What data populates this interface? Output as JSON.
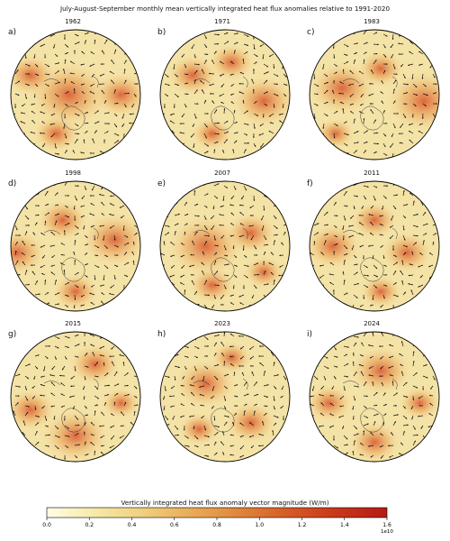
{
  "title": "July-August-September monthly mean vertically integrated heat flux anomalies relative to 1991-2020",
  "panels": [
    {
      "label": "a)",
      "year": "1962"
    },
    {
      "label": "b)",
      "year": "1971"
    },
    {
      "label": "c)",
      "year": "1983"
    },
    {
      "label": "d)",
      "year": "1998"
    },
    {
      "label": "e)",
      "year": "2007"
    },
    {
      "label": "f)",
      "year": "2011"
    },
    {
      "label": "g)",
      "year": "2015"
    },
    {
      "label": "h)",
      "year": "2023"
    },
    {
      "label": "i)",
      "year": "2024"
    }
  ],
  "colorbar": {
    "title": "Vertically integrated heat flux anomaly vector magnitude (W/m)",
    "ticks": [
      "0.0",
      "0.2",
      "0.4",
      "0.6",
      "0.8",
      "1.0",
      "1.2",
      "1.4",
      "1.6"
    ],
    "exponent": "1e10",
    "colors": [
      "#fffde6",
      "#f6e9a8",
      "#efcf7c",
      "#e9aa58",
      "#e0843a",
      "#d55a26",
      "#c8361a",
      "#b51a14"
    ]
  }
}
